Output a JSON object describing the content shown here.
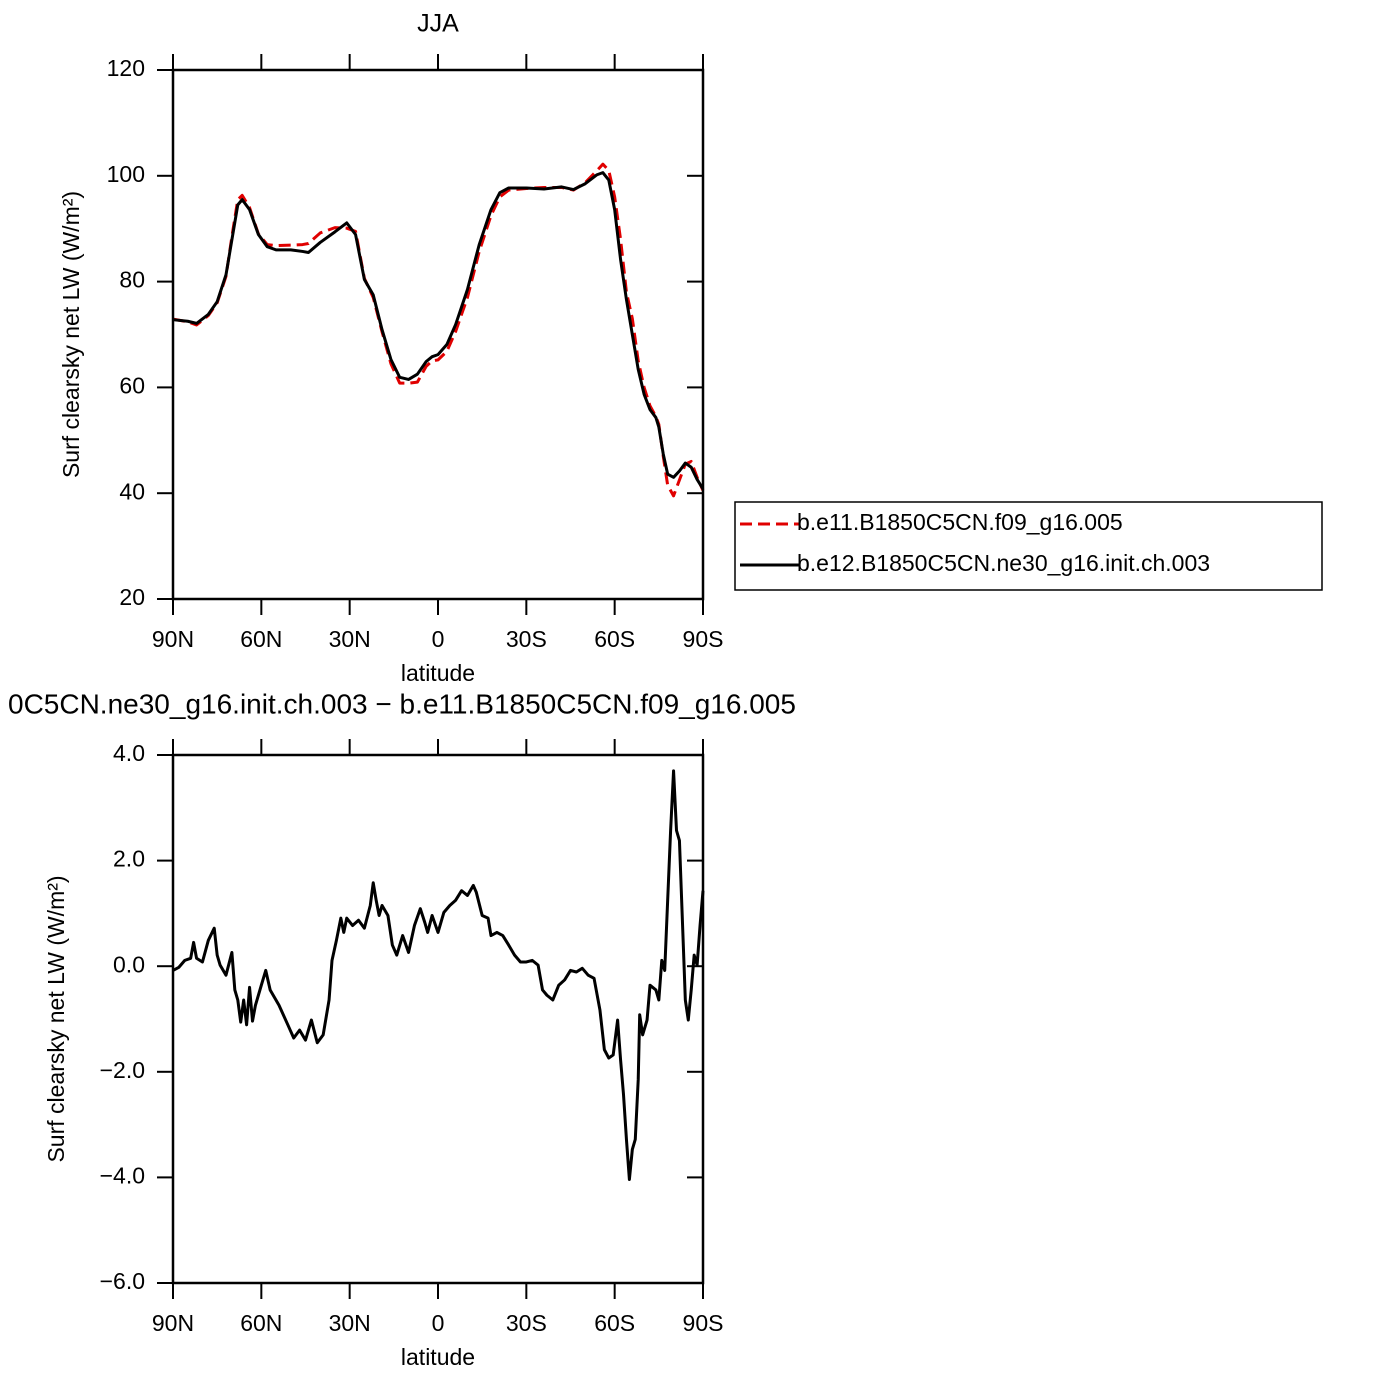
{
  "chart_data": [
    {
      "type": "line",
      "title": "JJA",
      "x_label": "latitude",
      "y_label": "Surf clearsky net LW (W/m²)",
      "xlim": [
        90,
        -90
      ],
      "xticks": [
        {
          "value": 90,
          "label": "90N"
        },
        {
          "value": 60,
          "label": "60N"
        },
        {
          "value": 30,
          "label": "30N"
        },
        0,
        {
          "value": -30,
          "label": "30S"
        },
        {
          "value": -60,
          "label": "60S"
        },
        {
          "value": -90,
          "label": "90S"
        }
      ],
      "ylim": [
        20,
        120
      ],
      "yticks": [
        20,
        40,
        60,
        80,
        100,
        120
      ],
      "legend": "right",
      "x": [
        90,
        85,
        82,
        78,
        75,
        72,
        70,
        68,
        66.5,
        64,
        61,
        58,
        55,
        50,
        46,
        44,
        40,
        35,
        31,
        28,
        25,
        22,
        19,
        16,
        13,
        10,
        7,
        4,
        2,
        0,
        -3,
        -6,
        -10,
        -14,
        -18,
        -21,
        -24,
        -30,
        -36,
        -42,
        -46,
        -50,
        -54,
        -56,
        -58,
        -60,
        -62,
        -64,
        -66,
        -68,
        -70,
        -72,
        -74,
        -75,
        -76.5,
        -78,
        -80,
        -82,
        -84,
        -86,
        -88,
        -90
      ],
      "series": [
        {
          "name": "b.e11.B1850C5CN.f09_g16.005",
          "color": "#e00000",
          "style": "dashed",
          "values": [
            72.9,
            72.4,
            71.8,
            73.6,
            76.0,
            81.0,
            88.5,
            95.5,
            96.3,
            94.0,
            89.0,
            87.0,
            86.8,
            86.9,
            87.0,
            87.2,
            89.2,
            90.2,
            90.1,
            89.5,
            80.6,
            77.0,
            70.5,
            64.5,
            60.8,
            60.8,
            61.0,
            64.0,
            65.0,
            65.2,
            66.8,
            70.6,
            77.0,
            85.7,
            92.5,
            96.0,
            97.3,
            97.6,
            97.8,
            97.8,
            97.3,
            98.7,
            101.0,
            102.2,
            101.0,
            96.0,
            88.0,
            78.0,
            73.0,
            65.0,
            60.0,
            56.5,
            54.5,
            53.0,
            47.0,
            41.5,
            39.5,
            42.5,
            45.5,
            46.0,
            43.0,
            40.5
          ]
        },
        {
          "name": "b.e12.B1850C5CN.ne30_g16.init.ch.003",
          "color": "#000000",
          "style": "solid",
          "values": [
            72.8,
            72.5,
            72.1,
            73.8,
            76.2,
            81.3,
            87.9,
            94.5,
            95.5,
            93.6,
            88.9,
            86.6,
            86.0,
            86.0,
            85.7,
            85.5,
            87.4,
            89.4,
            91.1,
            88.9,
            80.4,
            77.5,
            70.9,
            65.3,
            61.9,
            61.5,
            62.5,
            64.9,
            65.8,
            66.2,
            68.1,
            71.9,
            78.5,
            87.0,
            93.6,
            96.8,
            97.7,
            97.7,
            97.5,
            97.9,
            97.4,
            98.5,
            100.2,
            100.6,
            99.2,
            93.6,
            84.2,
            76.6,
            70.0,
            63.4,
            58.7,
            55.8,
            54.3,
            52.5,
            47.4,
            43.6,
            43.0,
            44.2,
            45.7,
            44.9,
            42.6,
            40.8
          ]
        }
      ]
    },
    {
      "type": "line",
      "title": "0C5CN.ne30_g16.init.ch.003 − b.e11.B1850C5CN.f09_g16.005",
      "x_label": "latitude",
      "y_label": "Surf clearsky net LW (W/m²)",
      "xlim": [
        90,
        -90
      ],
      "xticks": [
        {
          "value": 90,
          "label": "90N"
        },
        {
          "value": 60,
          "label": "60N"
        },
        {
          "value": 30,
          "label": "30N"
        },
        0,
        {
          "value": -30,
          "label": "30S"
        },
        {
          "value": -60,
          "label": "60S"
        },
        {
          "value": -90,
          "label": "90S"
        }
      ],
      "ylim": [
        -6,
        4
      ],
      "yticks": [
        {
          "value": -6,
          "label": "−6.0"
        },
        {
          "value": -4,
          "label": "−4.0"
        },
        {
          "value": -2,
          "label": "−2.0"
        },
        {
          "value": 0,
          "label": "0.0"
        },
        {
          "value": 2,
          "label": "2.0"
        },
        {
          "value": 4,
          "label": "4.0"
        }
      ],
      "color": "#000000",
      "x": [
        90,
        88,
        86,
        84,
        83,
        82,
        80,
        78,
        76,
        75,
        74,
        72,
        70,
        69,
        68,
        67,
        66,
        65,
        64,
        63,
        62,
        60,
        58.5,
        57,
        54,
        51,
        49,
        47,
        45,
        43,
        41,
        39,
        37,
        36,
        34.5,
        33,
        32,
        31,
        29,
        27,
        25,
        23,
        22,
        21,
        20,
        19,
        17,
        15.5,
        14,
        12,
        10,
        8,
        6,
        4.5,
        3.5,
        2,
        0,
        -2,
        -4,
        -6,
        -8,
        -10,
        -12,
        -13,
        -15,
        -17,
        -18,
        -20,
        -22,
        -24,
        -26,
        -28,
        -30,
        -32,
        -34,
        -35.5,
        -37,
        -39,
        -41,
        -43,
        -45,
        -47,
        -49,
        -51,
        -53,
        -55,
        -56.5,
        -58,
        -59.5,
        -61,
        -62,
        -63,
        -64,
        -65,
        -66,
        -67,
        -68,
        -68.5,
        -69.5,
        -71,
        -72,
        -74,
        -75,
        -76,
        -77,
        -78,
        -79,
        -80,
        -81,
        -82,
        -83,
        -84,
        -85,
        -86,
        -87,
        -88,
        -89,
        -90
      ],
      "values": [
        -0.08,
        -0.02,
        0.11,
        0.15,
        0.45,
        0.15,
        0.08,
        0.49,
        0.72,
        0.21,
        0.02,
        -0.17,
        0.26,
        -0.45,
        -0.64,
        -1.06,
        -0.64,
        -1.11,
        -0.4,
        -1.04,
        -0.74,
        -0.36,
        -0.08,
        -0.45,
        -0.74,
        -1.11,
        -1.36,
        -1.21,
        -1.4,
        -1.02,
        -1.45,
        -1.3,
        -0.64,
        0.11,
        0.49,
        0.91,
        0.64,
        0.91,
        0.77,
        0.87,
        0.72,
        1.15,
        1.58,
        1.25,
        0.96,
        1.15,
        0.96,
        0.4,
        0.21,
        0.58,
        0.26,
        0.77,
        1.09,
        0.83,
        0.64,
        0.96,
        0.64,
        1.02,
        1.15,
        1.25,
        1.43,
        1.34,
        1.53,
        1.4,
        0.96,
        0.91,
        0.58,
        0.64,
        0.58,
        0.4,
        0.21,
        0.08,
        0.08,
        0.11,
        0.02,
        -0.45,
        -0.55,
        -0.64,
        -0.36,
        -0.26,
        -0.08,
        -0.11,
        -0.04,
        -0.17,
        -0.23,
        -0.83,
        -1.58,
        -1.74,
        -1.68,
        -1.02,
        -1.77,
        -2.43,
        -3.28,
        -4.04,
        -3.47,
        -3.28,
        -2.15,
        -0.92,
        -1.3,
        -1.02,
        -0.36,
        -0.45,
        -0.64,
        0.11,
        -0.08,
        1.25,
        2.57,
        3.7,
        2.57,
        2.38,
        0.87,
        -0.64,
        -1.02,
        -0.45,
        0.21,
        0.02,
        0.77,
        1.43
      ]
    }
  ]
}
